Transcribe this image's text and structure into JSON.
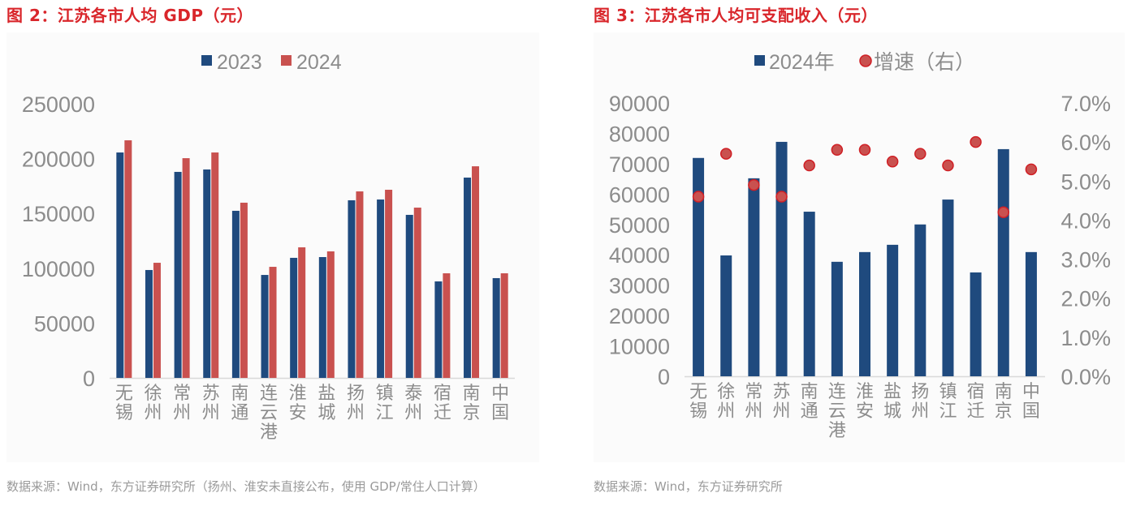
{
  "figures": [
    {
      "title": "图 2：江苏各市人均 GDP（元）",
      "source": "数据来源：Wind，东方证券研究所（扬州、淮安未直接公布，使用 GDP/常住人口计算）"
    },
    {
      "title": "图 3：江苏各市人均可支配收入（元）",
      "source": "数据来源：Wind，东方证券研究所"
    }
  ],
  "colors": {
    "navy": "#1f4a7e",
    "red": "#c9514f",
    "title_red": "#d9262b",
    "axis_text": "#8c8c8c"
  },
  "chart_data": [
    {
      "type": "bar",
      "title": "图 2：江苏各市人均 GDP（元）",
      "xlabel": "",
      "ylabel": "",
      "ylim": [
        0,
        250000
      ],
      "yticks": [
        "0",
        "50000",
        "100000",
        "150000",
        "200000",
        "250000"
      ],
      "yticks_values": [
        0,
        50000,
        100000,
        150000,
        200000,
        250000
      ],
      "legend": {
        "position": "top",
        "entries": [
          "2023",
          "2024"
        ]
      },
      "grid": false,
      "categories": [
        "无锡",
        "徐州",
        "常州",
        "苏州",
        "南通",
        "连云港",
        "淮安",
        "盐城",
        "扬州",
        "镇江",
        "泰州",
        "宿迁",
        "南京",
        "中国"
      ],
      "series": [
        {
          "name": "2023",
          "color": "#1f4a7e",
          "values": [
            205600,
            98400,
            187900,
            190100,
            152400,
            93900,
            109500,
            110200,
            162000,
            162700,
            148700,
            88000,
            182700,
            91000
          ]
        },
        {
          "name": "2024",
          "color": "#c9514f",
          "values": [
            216700,
            105000,
            200400,
            205600,
            159800,
            101300,
            119100,
            115400,
            170100,
            171600,
            155300,
            95400,
            193000,
            95400
          ]
        }
      ]
    },
    {
      "type": "bar",
      "title": "图 3：江苏各市人均可支配收入（元）",
      "xlabel": "",
      "ylabel": "",
      "ylim": [
        0,
        90000
      ],
      "ylim_right": [
        0,
        7.0
      ],
      "yticks": [
        "0",
        "10000",
        "20000",
        "30000",
        "40000",
        "50000",
        "60000",
        "70000",
        "80000",
        "90000"
      ],
      "yticks_values": [
        0,
        10000,
        20000,
        30000,
        40000,
        50000,
        60000,
        70000,
        80000,
        90000
      ],
      "yticks_right": [
        "0.0%",
        "1.0%",
        "2.0%",
        "3.0%",
        "4.0%",
        "5.0%",
        "6.0%",
        "7.0%"
      ],
      "yticks_right_values": [
        0,
        1,
        2,
        3,
        4,
        5,
        6,
        7
      ],
      "legend": {
        "position": "top",
        "entries": [
          "2024年",
          "增速（右）"
        ]
      },
      "grid": false,
      "categories": [
        "无锡",
        "徐州",
        "常州",
        "苏州",
        "南通",
        "连云港",
        "淮安",
        "盐城",
        "扬州",
        "镇江",
        "宿迁",
        "南京",
        "中国"
      ],
      "series": [
        {
          "name": "2024年",
          "kind": "bar",
          "axis": "left",
          "color": "#1f4a7e",
          "values": [
            71900,
            39800,
            65200,
            77200,
            54200,
            37700,
            40900,
            43300,
            50000,
            58200,
            34200,
            74800,
            40900
          ]
        },
        {
          "name": "增速（右）",
          "kind": "scatter",
          "axis": "right",
          "unit": "%",
          "color": "#c9514f",
          "values": [
            4.6,
            5.7,
            4.9,
            4.6,
            5.4,
            5.8,
            5.8,
            5.5,
            5.7,
            5.4,
            6.0,
            4.2,
            5.3
          ]
        }
      ]
    }
  ]
}
